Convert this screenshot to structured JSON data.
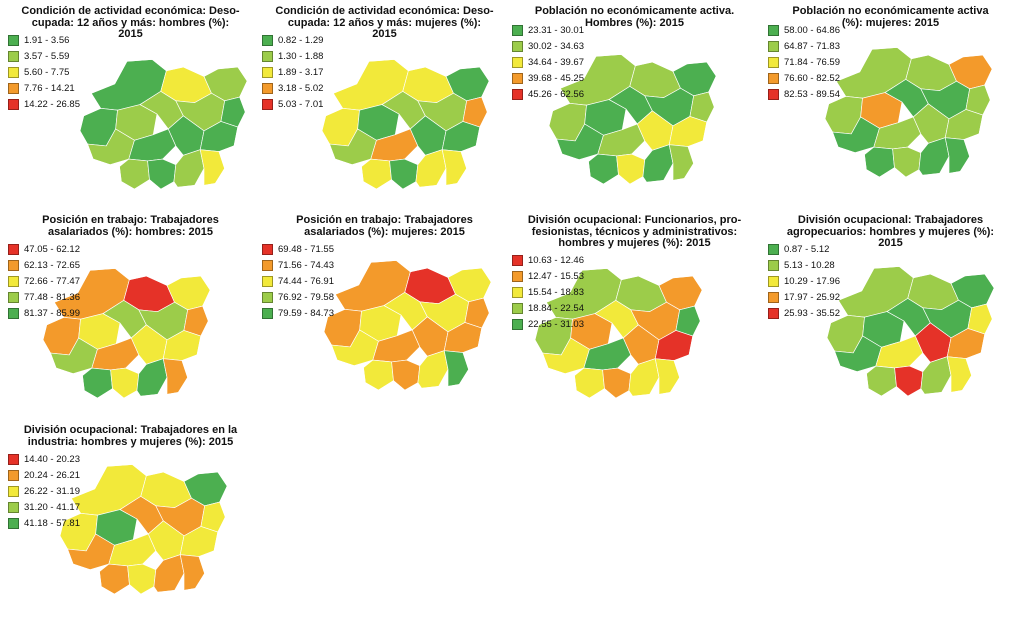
{
  "panels": [
    {
      "title": "Condición de actividad económica: Deso-\ncupada: 12 años y más: hombres (%):\n2015",
      "legend": [
        {
          "label": "1.91 - 3.56",
          "color": "#4caf50"
        },
        {
          "label": "3.57 - 5.59",
          "color": "#9ccc4a"
        },
        {
          "label": "5.60 - 7.75",
          "color": "#f2e93a"
        },
        {
          "label": "7.76 - 14.21",
          "color": "#f39a2b"
        },
        {
          "label": "14.22 - 26.85",
          "color": "#e53228"
        }
      ],
      "class_distribution": [
        2,
        4,
        3,
        1,
        0
      ]
    },
    {
      "title": "Condición de actividad económica: Deso-\ncupada: 12 años y más: mujeres (%):\n2015",
      "legend": [
        {
          "label": "0.82 - 1.29",
          "color": "#4caf50"
        },
        {
          "label": "1.30 - 1.88",
          "color": "#9ccc4a"
        },
        {
          "label": "1.89 - 3.17",
          "color": "#f2e93a"
        },
        {
          "label": "3.18 - 5.02",
          "color": "#f39a2b"
        },
        {
          "label": "5.03 - 7.01",
          "color": "#e53228"
        }
      ],
      "class_distribution": [
        3,
        2,
        3,
        2,
        0
      ]
    },
    {
      "title": "Población no económicamente activa.\nHombres (%): 2015",
      "legend": [
        {
          "label": "23.31 - 30.01",
          "color": "#4caf50"
        },
        {
          "label": "30.02 - 34.63",
          "color": "#9ccc4a"
        },
        {
          "label": "34.64 - 39.67",
          "color": "#f2e93a"
        },
        {
          "label": "39.68 - 45.25",
          "color": "#f39a2b"
        },
        {
          "label": "45.26 - 62.56",
          "color": "#e53228"
        }
      ],
      "class_distribution": [
        3,
        4,
        2,
        1,
        0
      ]
    },
    {
      "title": "Población no económicamente activa\n(%): mujeres: 2015",
      "legend": [
        {
          "label": "58.00 - 64.86",
          "color": "#4caf50"
        },
        {
          "label": "64.87 - 71.83",
          "color": "#9ccc4a"
        },
        {
          "label": "71.84 - 76.59",
          "color": "#f2e93a"
        },
        {
          "label": "76.60 - 82.52",
          "color": "#f39a2b"
        },
        {
          "label": "82.53 - 89.54",
          "color": "#e53228"
        }
      ],
      "class_distribution": [
        3,
        3,
        2,
        2,
        0
      ]
    },
    {
      "title": "Posición en trabajo: Trabajadores\nasalariados (%): hombres: 2015",
      "legend": [
        {
          "label": "47.05 - 62.12",
          "color": "#e53228"
        },
        {
          "label": "62.13 - 72.65",
          "color": "#f39a2b"
        },
        {
          "label": "72.66 - 77.47",
          "color": "#f2e93a"
        },
        {
          "label": "77.48 - 81.36",
          "color": "#9ccc4a"
        },
        {
          "label": "81.37 - 85.99",
          "color": "#4caf50"
        }
      ],
      "class_distribution": [
        1,
        2,
        3,
        3,
        1
      ]
    },
    {
      "title": "Posición en trabajo: Trabajadores\nasalariados (%): mujeres: 2015",
      "legend": [
        {
          "label": "69.48 - 71.55",
          "color": "#e53228"
        },
        {
          "label": "71.56 - 74.43",
          "color": "#f39a2b"
        },
        {
          "label": "74.44 - 76.91",
          "color": "#f2e93a"
        },
        {
          "label": "76.92 - 79.58",
          "color": "#9ccc4a"
        },
        {
          "label": "79.59 - 84.73",
          "color": "#4caf50"
        }
      ],
      "class_distribution": [
        1,
        3,
        3,
        2,
        1
      ]
    },
    {
      "title": "División ocupacional: Funcionarios, pro-\nfesionistas, técnicos y administrativos:\nhombres y mujeres (%): 2015",
      "legend": [
        {
          "label": "10.63 - 12.46",
          "color": "#e53228"
        },
        {
          "label": "12.47 - 15.53",
          "color": "#f39a2b"
        },
        {
          "label": "15.54 - 18.83",
          "color": "#f2e93a"
        },
        {
          "label": "18.84 - 22.54",
          "color": "#9ccc4a"
        },
        {
          "label": "22.55 - 31.03",
          "color": "#4caf50"
        }
      ],
      "class_distribution": [
        2,
        3,
        2,
        2,
        1
      ]
    },
    {
      "title": "División ocupacional: Trabajadores\nagropecuarios: hombres y mujeres (%):\n2015",
      "legend": [
        {
          "label": "0.87 - 5.12",
          "color": "#4caf50"
        },
        {
          "label": "5.13 - 10.28",
          "color": "#9ccc4a"
        },
        {
          "label": "10.29 - 17.96",
          "color": "#f2e93a"
        },
        {
          "label": "17.97 - 25.92",
          "color": "#f39a2b"
        },
        {
          "label": "25.93 - 35.52",
          "color": "#e53228"
        }
      ],
      "class_distribution": [
        3,
        3,
        2,
        1,
        1
      ]
    },
    {
      "title": "División ocupacional: Trabajadores en la\nindustria: hombres y mujeres (%): 2015",
      "legend": [
        {
          "label": "14.40 - 20.23",
          "color": "#e53228"
        },
        {
          "label": "20.24 - 26.21",
          "color": "#f39a2b"
        },
        {
          "label": "26.22 - 31.19",
          "color": "#f2e93a"
        },
        {
          "label": "31.20 - 41.17",
          "color": "#9ccc4a"
        },
        {
          "label": "41.18 - 57.81",
          "color": "#4caf50"
        }
      ],
      "class_distribution": [
        1,
        3,
        3,
        2,
        1
      ]
    }
  ]
}
